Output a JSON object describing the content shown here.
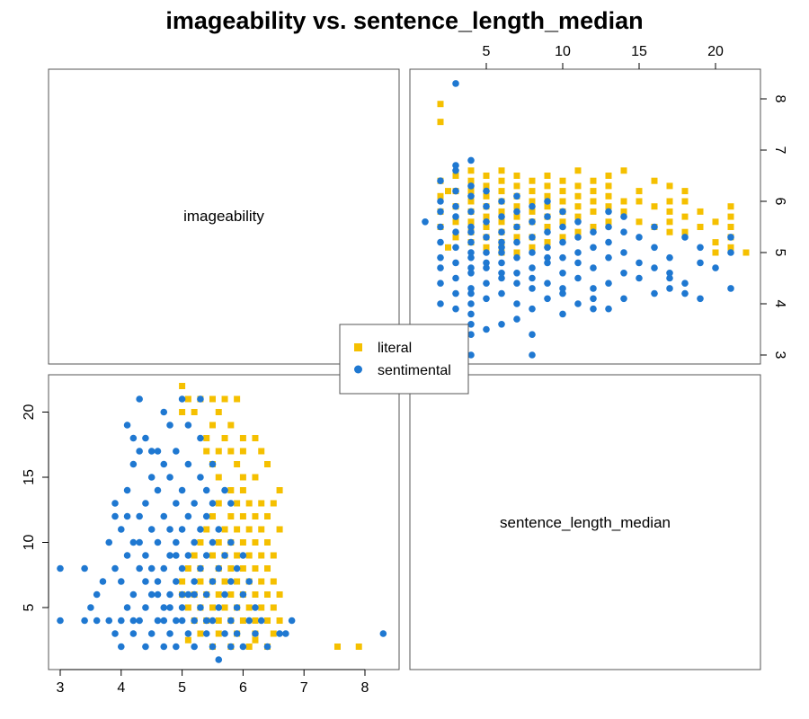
{
  "chart_data": {
    "type": "scatter",
    "title": "imageability vs. sentence_length_median",
    "variables": [
      "imageability",
      "sentence_length_median"
    ],
    "axes": {
      "imageability": {
        "range": [
          3,
          8.4
        ],
        "ticks": [
          3,
          4,
          5,
          6,
          7,
          8
        ],
        "tick_labels": [
          "3",
          "4",
          "5",
          "6",
          "7",
          "8"
        ]
      },
      "sentence_length_median": {
        "range": [
          1,
          22.5
        ],
        "ticks": [
          5,
          10,
          15,
          20
        ],
        "tick_labels": [
          "5",
          "10",
          "15",
          "20"
        ]
      }
    },
    "legend": {
      "placement": "center"
    },
    "series": [
      {
        "name": "literal",
        "color": "#f5c000",
        "marker": "square",
        "points": [
          [
            7.55,
            2
          ],
          [
            7.9,
            2
          ],
          [
            5.0,
            22
          ],
          [
            5.1,
            21
          ],
          [
            5.2,
            20
          ],
          [
            5.0,
            20
          ],
          [
            5.3,
            21
          ],
          [
            5.5,
            21
          ],
          [
            5.7,
            21
          ],
          [
            5.6,
            20
          ],
          [
            5.9,
            21
          ],
          [
            5.5,
            19
          ],
          [
            5.8,
            19
          ],
          [
            5.4,
            18
          ],
          [
            5.7,
            18
          ],
          [
            6.0,
            18
          ],
          [
            6.2,
            18
          ],
          [
            5.4,
            17
          ],
          [
            5.6,
            17
          ],
          [
            5.8,
            17
          ],
          [
            6.0,
            17
          ],
          [
            6.3,
            17
          ],
          [
            5.5,
            16
          ],
          [
            5.9,
            16
          ],
          [
            6.4,
            16
          ],
          [
            5.6,
            15
          ],
          [
            6.0,
            15
          ],
          [
            6.2,
            15
          ],
          [
            5.8,
            14
          ],
          [
            6.0,
            14
          ],
          [
            6.6,
            14
          ],
          [
            5.6,
            13
          ],
          [
            5.9,
            13
          ],
          [
            6.1,
            13
          ],
          [
            6.3,
            13
          ],
          [
            6.5,
            13
          ],
          [
            5.5,
            12
          ],
          [
            5.8,
            12
          ],
          [
            6.0,
            12
          ],
          [
            6.2,
            12
          ],
          [
            6.4,
            12
          ],
          [
            5.4,
            11
          ],
          [
            5.7,
            11
          ],
          [
            5.9,
            11
          ],
          [
            6.1,
            11
          ],
          [
            6.3,
            11
          ],
          [
            6.6,
            11
          ],
          [
            5.3,
            10
          ],
          [
            5.6,
            10
          ],
          [
            5.8,
            10
          ],
          [
            6.0,
            10
          ],
          [
            6.2,
            10
          ],
          [
            6.4,
            10
          ],
          [
            5.2,
            9
          ],
          [
            5.5,
            9
          ],
          [
            5.7,
            9
          ],
          [
            5.9,
            9
          ],
          [
            6.1,
            9
          ],
          [
            6.3,
            9
          ],
          [
            6.5,
            9
          ],
          [
            5.1,
            8
          ],
          [
            5.3,
            8
          ],
          [
            5.6,
            8
          ],
          [
            5.8,
            8
          ],
          [
            6.0,
            8
          ],
          [
            6.2,
            8
          ],
          [
            6.4,
            8
          ],
          [
            5.0,
            7
          ],
          [
            5.3,
            7
          ],
          [
            5.5,
            7
          ],
          [
            5.7,
            7
          ],
          [
            5.9,
            7
          ],
          [
            6.1,
            7
          ],
          [
            6.3,
            7
          ],
          [
            6.5,
            7
          ],
          [
            5.0,
            6
          ],
          [
            5.2,
            6
          ],
          [
            5.4,
            6
          ],
          [
            5.6,
            6
          ],
          [
            5.8,
            6
          ],
          [
            6.0,
            6
          ],
          [
            6.2,
            6
          ],
          [
            6.4,
            6
          ],
          [
            6.6,
            6
          ],
          [
            5.1,
            5
          ],
          [
            5.3,
            5
          ],
          [
            5.5,
            5
          ],
          [
            5.7,
            5
          ],
          [
            5.9,
            5
          ],
          [
            6.1,
            5
          ],
          [
            6.3,
            5
          ],
          [
            6.5,
            5
          ],
          [
            5.2,
            4
          ],
          [
            5.4,
            4
          ],
          [
            5.6,
            4
          ],
          [
            5.8,
            4
          ],
          [
            6.0,
            4
          ],
          [
            6.2,
            4
          ],
          [
            6.4,
            4
          ],
          [
            6.6,
            4
          ],
          [
            5.3,
            3
          ],
          [
            5.6,
            3
          ],
          [
            5.9,
            3
          ],
          [
            6.2,
            3
          ],
          [
            5.5,
            2
          ],
          [
            5.8,
            2
          ],
          [
            6.1,
            2
          ],
          [
            6.4,
            2
          ],
          [
            6.5,
            3
          ],
          [
            5.1,
            2.5
          ],
          [
            6.2,
            2.5
          ]
        ]
      },
      {
        "name": "sentimental",
        "color": "#1f78d1",
        "marker": "circle",
        "points": [
          [
            8.3,
            3
          ],
          [
            3.0,
            8
          ],
          [
            3.0,
            4
          ],
          [
            3.4,
            8
          ],
          [
            3.4,
            4
          ],
          [
            3.5,
            5
          ],
          [
            3.6,
            6
          ],
          [
            3.6,
            4
          ],
          [
            3.7,
            7
          ],
          [
            3.8,
            4
          ],
          [
            3.8,
            10
          ],
          [
            3.9,
            8
          ],
          [
            3.9,
            12
          ],
          [
            3.9,
            13
          ],
          [
            3.9,
            3
          ],
          [
            4.0,
            7
          ],
          [
            4.0,
            11
          ],
          [
            4.0,
            4
          ],
          [
            4.0,
            2
          ],
          [
            4.1,
            5
          ],
          [
            4.1,
            9
          ],
          [
            4.1,
            14
          ],
          [
            4.1,
            19
          ],
          [
            4.2,
            6
          ],
          [
            4.2,
            10
          ],
          [
            4.2,
            16
          ],
          [
            4.2,
            3
          ],
          [
            4.2,
            18
          ],
          [
            4.3,
            8
          ],
          [
            4.3,
            12
          ],
          [
            4.3,
            17
          ],
          [
            4.3,
            4
          ],
          [
            4.3,
            21
          ],
          [
            4.4,
            2
          ],
          [
            4.4,
            5
          ],
          [
            4.4,
            9
          ],
          [
            4.4,
            13
          ],
          [
            4.4,
            18
          ],
          [
            4.5,
            3
          ],
          [
            4.5,
            6
          ],
          [
            4.5,
            11
          ],
          [
            4.5,
            15
          ],
          [
            4.6,
            4
          ],
          [
            4.6,
            7
          ],
          [
            4.6,
            10
          ],
          [
            4.6,
            14
          ],
          [
            4.6,
            17
          ],
          [
            4.7,
            2
          ],
          [
            4.7,
            5
          ],
          [
            4.7,
            8
          ],
          [
            4.7,
            12
          ],
          [
            4.7,
            16
          ],
          [
            4.7,
            20
          ],
          [
            4.8,
            3
          ],
          [
            4.8,
            6
          ],
          [
            4.8,
            9
          ],
          [
            4.8,
            11
          ],
          [
            4.8,
            15
          ],
          [
            4.8,
            19
          ],
          [
            4.9,
            4
          ],
          [
            4.9,
            7
          ],
          [
            4.9,
            10
          ],
          [
            4.9,
            13
          ],
          [
            4.9,
            17
          ],
          [
            4.9,
            2
          ],
          [
            5.0,
            5
          ],
          [
            5.0,
            8
          ],
          [
            5.0,
            11
          ],
          [
            5.0,
            14
          ],
          [
            5.0,
            21
          ],
          [
            5.1,
            3
          ],
          [
            5.1,
            6
          ],
          [
            5.1,
            9
          ],
          [
            5.1,
            12
          ],
          [
            5.1,
            16
          ],
          [
            5.1,
            19
          ],
          [
            5.2,
            4
          ],
          [
            5.2,
            7
          ],
          [
            5.2,
            10
          ],
          [
            5.2,
            13
          ],
          [
            5.2,
            2
          ],
          [
            5.3,
            5
          ],
          [
            5.3,
            8
          ],
          [
            5.3,
            11
          ],
          [
            5.3,
            15
          ],
          [
            5.3,
            18
          ],
          [
            5.3,
            21
          ],
          [
            5.4,
            3
          ],
          [
            5.4,
            6
          ],
          [
            5.4,
            9
          ],
          [
            5.4,
            12
          ],
          [
            5.4,
            14
          ],
          [
            5.5,
            2
          ],
          [
            5.5,
            4
          ],
          [
            5.5,
            7
          ],
          [
            5.5,
            10
          ],
          [
            5.5,
            13
          ],
          [
            5.5,
            16
          ],
          [
            5.6,
            1
          ],
          [
            5.6,
            5
          ],
          [
            5.6,
            8
          ],
          [
            5.6,
            11
          ],
          [
            5.7,
            3
          ],
          [
            5.7,
            6
          ],
          [
            5.7,
            9
          ],
          [
            5.7,
            14
          ],
          [
            5.8,
            2
          ],
          [
            5.8,
            4
          ],
          [
            5.8,
            7
          ],
          [
            5.8,
            10
          ],
          [
            5.8,
            13
          ],
          [
            5.9,
            3
          ],
          [
            5.9,
            5
          ],
          [
            5.9,
            8
          ],
          [
            6.0,
            2
          ],
          [
            6.0,
            6
          ],
          [
            6.0,
            9
          ],
          [
            6.1,
            4
          ],
          [
            6.1,
            7
          ],
          [
            6.2,
            3
          ],
          [
            6.2,
            5
          ],
          [
            6.3,
            4
          ],
          [
            6.4,
            2
          ],
          [
            6.6,
            3
          ],
          [
            6.7,
            3
          ],
          [
            6.8,
            4
          ],
          [
            4.2,
            4
          ],
          [
            4.4,
            7
          ],
          [
            4.6,
            6
          ],
          [
            4.8,
            5
          ],
          [
            5.0,
            4
          ],
          [
            5.2,
            6
          ],
          [
            4.5,
            8
          ],
          [
            4.3,
            10
          ],
          [
            4.7,
            4
          ],
          [
            5.4,
            4
          ],
          [
            5.0,
            6
          ],
          [
            4.9,
            9
          ],
          [
            4.1,
            12
          ],
          [
            4.5,
            17
          ]
        ]
      }
    ]
  },
  "panels": {
    "diag_top_left": "imageability",
    "diag_bottom_right": "sentence_length_median"
  }
}
